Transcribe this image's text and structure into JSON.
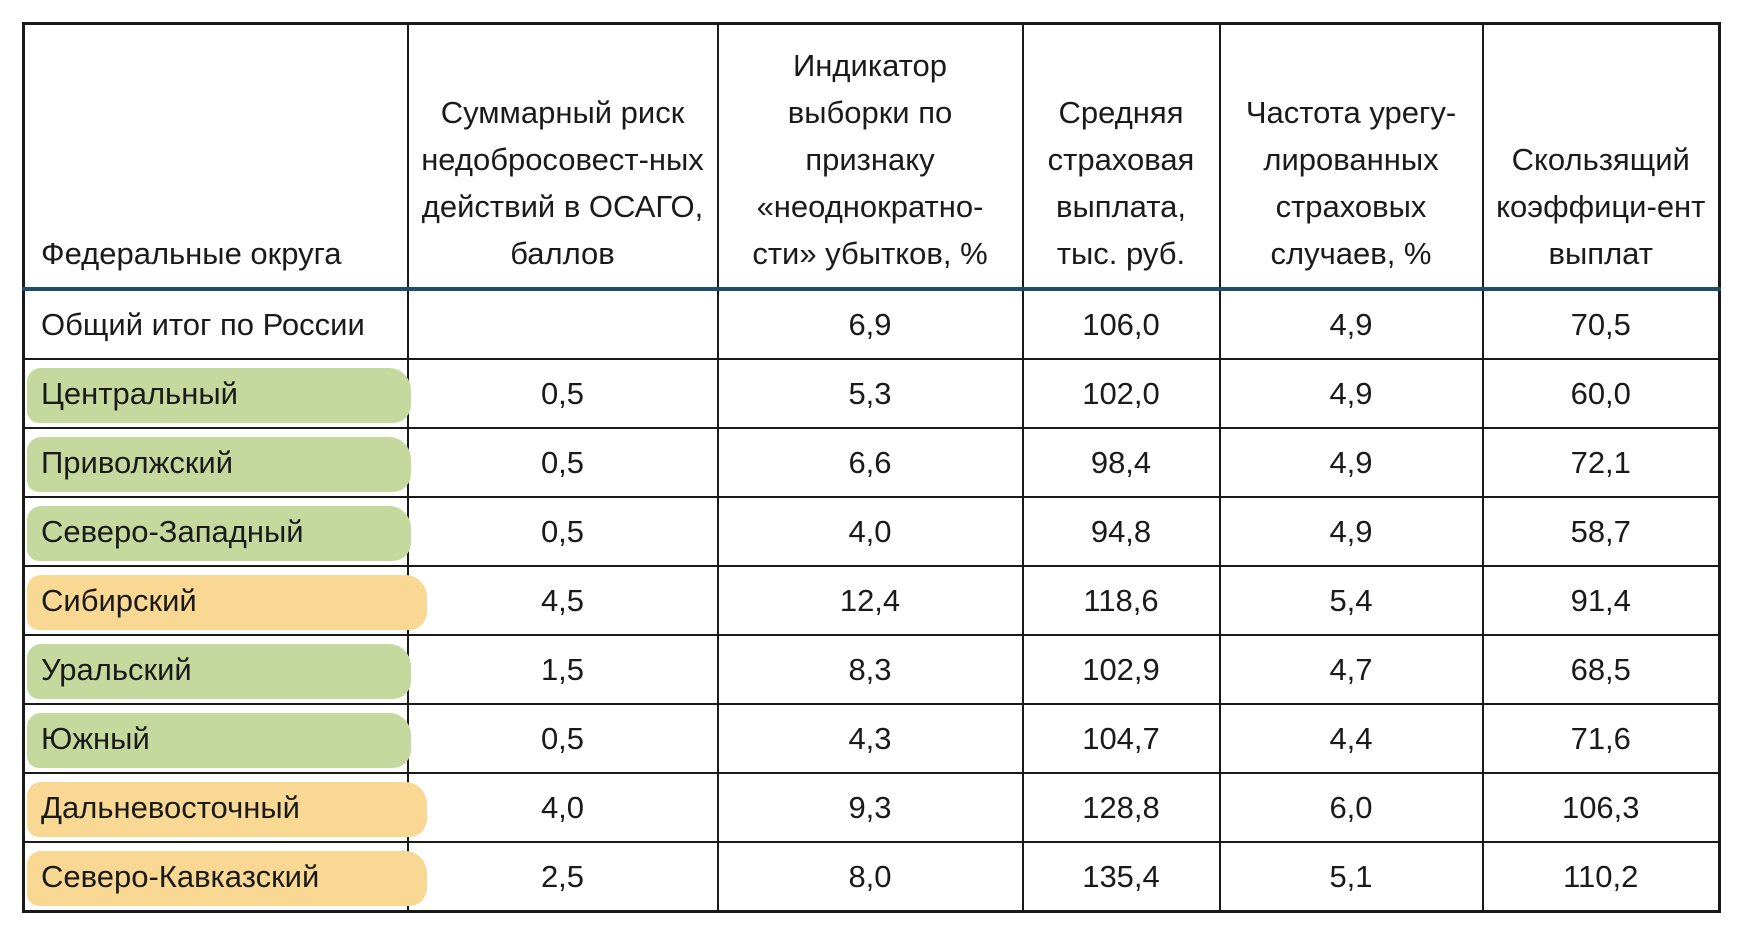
{
  "headers": [
    "Федеральные округа",
    "Суммарный риск недобросовест-ных действий в ОСАГО, баллов",
    "Индикатор выборки по признаку «неоднократно-сти» убытков, %",
    "Средняя страховая выплата, тыс. руб.",
    "Частота урегу-лированных страховых случаев, %",
    "Скользящий коэффици-ент выплат"
  ],
  "highlight_colors": {
    "green": "#c5d99f",
    "yellow": "#f9d894"
  },
  "rows": [
    {
      "name": "Общий итог по России",
      "highlight": "none",
      "values": [
        "",
        "6,9",
        "106,0",
        "4,9",
        "70,5"
      ]
    },
    {
      "name": "Центральный",
      "highlight": "green",
      "values": [
        "0,5",
        "5,3",
        "102,0",
        "4,9",
        "60,0"
      ]
    },
    {
      "name": "Приволжский",
      "highlight": "green",
      "values": [
        "0,5",
        "6,6",
        "98,4",
        "4,9",
        "72,1"
      ]
    },
    {
      "name": "Северо-Западный",
      "highlight": "green",
      "values": [
        "0,5",
        "4,0",
        "94,8",
        "4,9",
        "58,7"
      ]
    },
    {
      "name": "Сибирский",
      "highlight": "yellow",
      "values": [
        "4,5",
        "12,4",
        "118,6",
        "5,4",
        "91,4"
      ]
    },
    {
      "name": "Уральский",
      "highlight": "green",
      "values": [
        "1,5",
        "8,3",
        "102,9",
        "4,7",
        "68,5"
      ]
    },
    {
      "name": "Южный",
      "highlight": "green",
      "values": [
        "0,5",
        "4,3",
        "104,7",
        "4,4",
        "71,6"
      ]
    },
    {
      "name": "Дальневосточный",
      "highlight": "yellow",
      "values": [
        "4,0",
        "9,3",
        "128,8",
        "6,0",
        "106,3"
      ]
    },
    {
      "name": "Северо-Кавказский",
      "highlight": "yellow",
      "values": [
        "2,5",
        "8,0",
        "135,4",
        "5,1",
        "110,2"
      ]
    }
  ]
}
